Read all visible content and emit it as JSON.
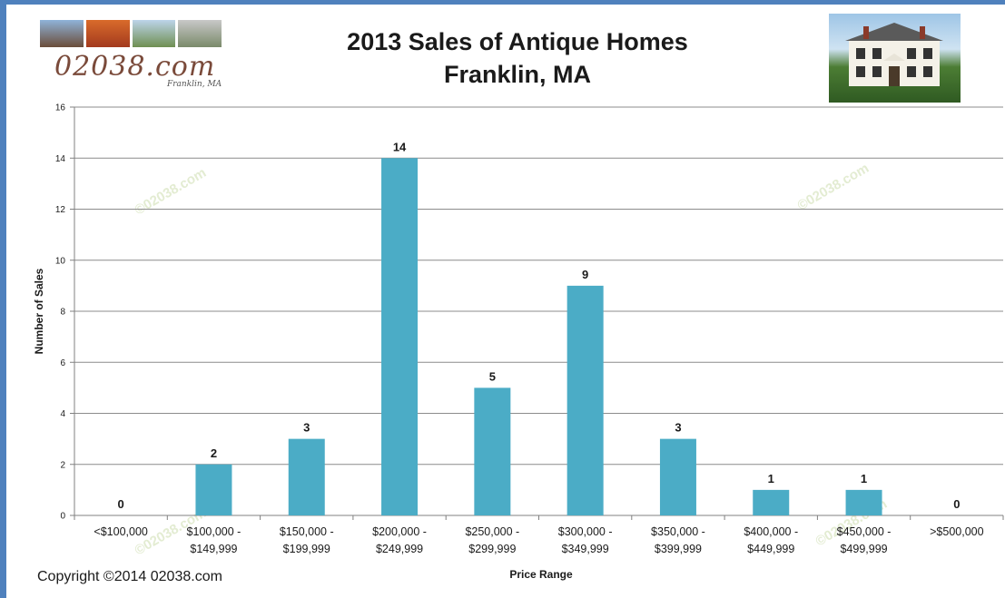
{
  "header": {
    "title_line1": "2013 Sales of Antique Homes",
    "title_line2": "Franklin, MA",
    "logo_text": "02038.com",
    "logo_sub": "Franklin, MA"
  },
  "footer": {
    "copyright": "Copyright ©2014 02038.com"
  },
  "watermark": "©02038.com",
  "colors": {
    "bar": "#4bacc6",
    "frame": "#4f81bd",
    "grid": "#8c8c8c"
  },
  "chart_data": {
    "type": "bar",
    "title": "2013 Sales of Antique Homes Franklin, MA",
    "xlabel": "Price Range",
    "ylabel": "Number of Sales",
    "ylim": [
      0,
      16
    ],
    "yticks": [
      0,
      2,
      4,
      6,
      8,
      10,
      12,
      14,
      16
    ],
    "grid": true,
    "categories": [
      [
        "<$100,000"
      ],
      [
        "$100,000 -",
        "$149,999"
      ],
      [
        "$150,000 -",
        "$199,999"
      ],
      [
        "$200,000 -",
        "$249,999"
      ],
      [
        "$250,000 -",
        "$299,999"
      ],
      [
        "$300,000 -",
        "$349,999"
      ],
      [
        "$350,000 -",
        "$399,999"
      ],
      [
        "$400,000 -",
        "$449,999"
      ],
      [
        "$450,000 -",
        "$499,999"
      ],
      [
        ">$500,000"
      ]
    ],
    "values": [
      0,
      2,
      3,
      14,
      5,
      9,
      3,
      1,
      1,
      0
    ]
  }
}
